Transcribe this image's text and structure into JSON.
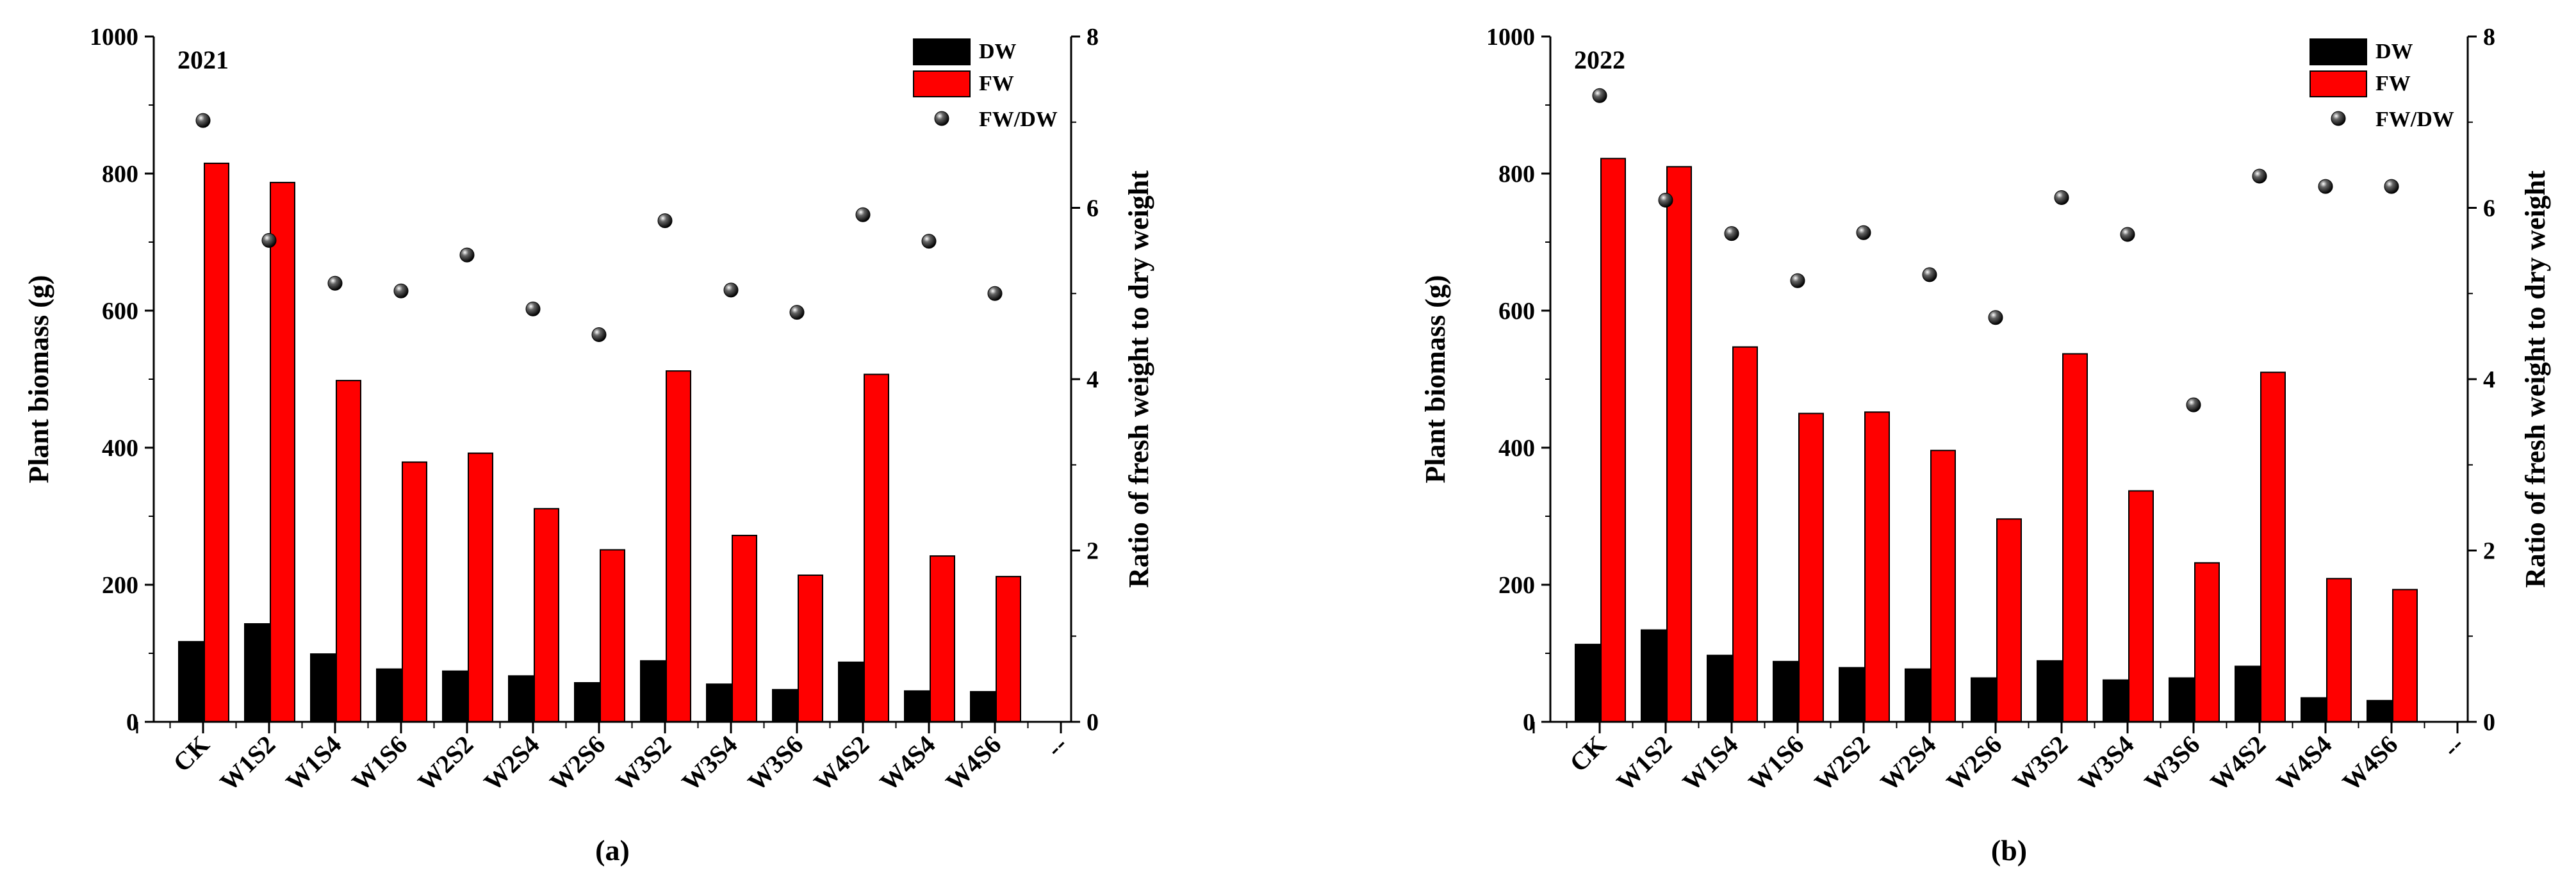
{
  "colors": {
    "dw": "#000000",
    "fw": "#ff0000",
    "ratio": "#000000",
    "axis": "#000000"
  },
  "panel_labels": [
    "(a)",
    "(b)"
  ],
  "chart_data": [
    {
      "type": "bar",
      "title": "2021",
      "panel_label": "(a)",
      "categories": [
        "CK",
        "W1S2",
        "W1S4",
        "W1S6",
        "W2S2",
        "W2S4",
        "W2S6",
        "W3S2",
        "W3S4",
        "W3S6",
        "W4S2",
        "W4S4",
        "W4S6"
      ],
      "extra_tick_label": "--",
      "ylabel": "Plant biomass (g)",
      "y2label": "Ratio of fresh weight to dry weight",
      "ylim": [
        0,
        1000
      ],
      "y2lim": [
        0,
        8
      ],
      "yticks": [
        "0",
        "200",
        "400",
        "600",
        "800",
        "1000"
      ],
      "y2ticks": [
        "0",
        "2",
        "4",
        "6",
        "8"
      ],
      "legend": [
        "DW",
        "FW",
        "FW/DW"
      ],
      "legend_position": "top-right",
      "series": [
        {
          "name": "DW",
          "axis": "left",
          "kind": "bar",
          "values": [
            117,
            143,
            99,
            77,
            74,
            67,
            57,
            89,
            55,
            47,
            87,
            45,
            44
          ]
        },
        {
          "name": "FW",
          "axis": "left",
          "kind": "bar",
          "values": [
            815,
            787,
            498,
            379,
            392,
            311,
            251,
            512,
            272,
            214,
            507,
            242,
            212
          ]
        },
        {
          "name": "FW/DW",
          "axis": "right",
          "kind": "scatter",
          "values": [
            7.02,
            5.62,
            5.12,
            5.03,
            5.45,
            4.82,
            4.52,
            5.85,
            5.04,
            4.78,
            5.92,
            5.61,
            5.0
          ]
        }
      ]
    },
    {
      "type": "bar",
      "title": "2022",
      "panel_label": "(b)",
      "categories": [
        "CK",
        "W1S2",
        "W1S4",
        "W1S6",
        "W2S2",
        "W2S4",
        "W2S6",
        "W3S2",
        "W3S4",
        "W3S6",
        "W4S2",
        "W4S4",
        "W4S6"
      ],
      "extra_tick_label": "--",
      "ylabel": "Plant biomass (g)",
      "y2label": "Ratio of fresh weight to dry weight",
      "ylim": [
        0,
        1000
      ],
      "y2lim": [
        0,
        8
      ],
      "yticks": [
        "0",
        "200",
        "400",
        "600",
        "800",
        "1000"
      ],
      "y2ticks": [
        "0",
        "2",
        "4",
        "6",
        "8"
      ],
      "legend": [
        "DW",
        "FW",
        "FW/DW"
      ],
      "legend_position": "top-right",
      "series": [
        {
          "name": "DW",
          "axis": "left",
          "kind": "bar",
          "values": [
            113,
            134,
            97,
            88,
            79,
            77,
            64,
            89,
            61,
            64,
            81,
            35,
            31
          ]
        },
        {
          "name": "FW",
          "axis": "left",
          "kind": "bar",
          "values": [
            822,
            810,
            547,
            450,
            452,
            396,
            296,
            537,
            337,
            232,
            510,
            209,
            193
          ]
        },
        {
          "name": "FW/DW",
          "axis": "right",
          "kind": "scatter",
          "values": [
            7.31,
            6.09,
            5.7,
            5.15,
            5.71,
            5.22,
            4.72,
            6.12,
            5.69,
            3.7,
            6.37,
            6.25,
            6.25
          ]
        }
      ]
    }
  ]
}
